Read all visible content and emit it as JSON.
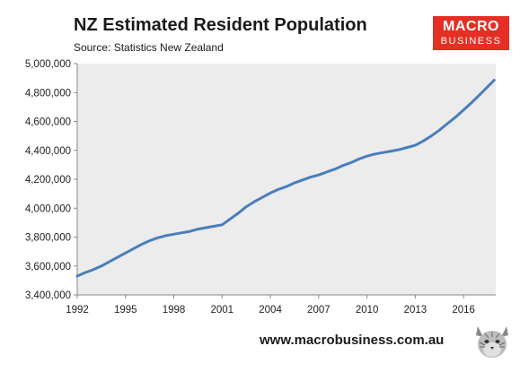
{
  "header": {
    "title": "NZ Estimated Resident Population",
    "source": "Source: Statistics New Zealand"
  },
  "logo": {
    "line1": "MACRO",
    "line2": "BUSINESS",
    "color": "#e52f24"
  },
  "footer": {
    "url": "www.macrobusiness.com.au",
    "mascot_icon": "lynx-head-icon"
  },
  "chart_data": {
    "type": "line",
    "title": "NZ Estimated Resident Population",
    "xlabel": "",
    "ylabel": "",
    "xlim": [
      1992,
      2018
    ],
    "ylim": [
      3400000,
      5000000
    ],
    "x_ticks": [
      1992,
      1995,
      1998,
      2001,
      2004,
      2007,
      2010,
      2013,
      2016
    ],
    "y_ticks": [
      3400000,
      3600000,
      3800000,
      4000000,
      4200000,
      4400000,
      4600000,
      4800000,
      5000000
    ],
    "x_tick_labels": [
      "1992",
      "1995",
      "1998",
      "2001",
      "2004",
      "2007",
      "2010",
      "2013",
      "2016"
    ],
    "y_tick_labels": [
      "3,400,000",
      "3,600,000",
      "3,800,000",
      "4,000,000",
      "4,200,000",
      "4,400,000",
      "4,600,000",
      "4,800,000",
      "5,000,000"
    ],
    "grid": false,
    "plot_background": "#ececec",
    "line_color": "#4a7ebb",
    "series": [
      {
        "x": [
          1992.0,
          1992.5,
          1993.0,
          1993.5,
          1994.0,
          1994.5,
          1995.0,
          1995.5,
          1996.0,
          1996.5,
          1997.0,
          1997.5,
          1998.0,
          1998.5,
          1999.0,
          1999.5,
          2000.0,
          2000.5,
          2001.0,
          2001.5,
          2002.0,
          2002.5,
          2003.0,
          2003.5,
          2004.0,
          2004.5,
          2005.0,
          2005.5,
          2006.0,
          2006.5,
          2007.0,
          2007.5,
          2008.0,
          2008.5,
          2009.0,
          2009.5,
          2010.0,
          2010.5,
          2011.0,
          2011.5,
          2012.0,
          2012.5,
          2013.0,
          2013.5,
          2014.0,
          2014.5,
          2015.0,
          2015.5,
          2016.0,
          2016.5,
          2017.0,
          2017.5,
          2017.9
        ],
        "y": [
          3530000,
          3555000,
          3575000,
          3600000,
          3630000,
          3660000,
          3690000,
          3720000,
          3750000,
          3775000,
          3795000,
          3810000,
          3820000,
          3830000,
          3840000,
          3855000,
          3865000,
          3875000,
          3885000,
          3925000,
          3965000,
          4010000,
          4045000,
          4075000,
          4105000,
          4130000,
          4150000,
          4175000,
          4195000,
          4215000,
          4230000,
          4250000,
          4270000,
          4295000,
          4315000,
          4340000,
          4360000,
          4375000,
          4385000,
          4395000,
          4405000,
          4420000,
          4435000,
          4465000,
          4500000,
          4540000,
          4585000,
          4630000,
          4680000,
          4730000,
          4785000,
          4840000,
          4885000
        ]
      }
    ]
  }
}
